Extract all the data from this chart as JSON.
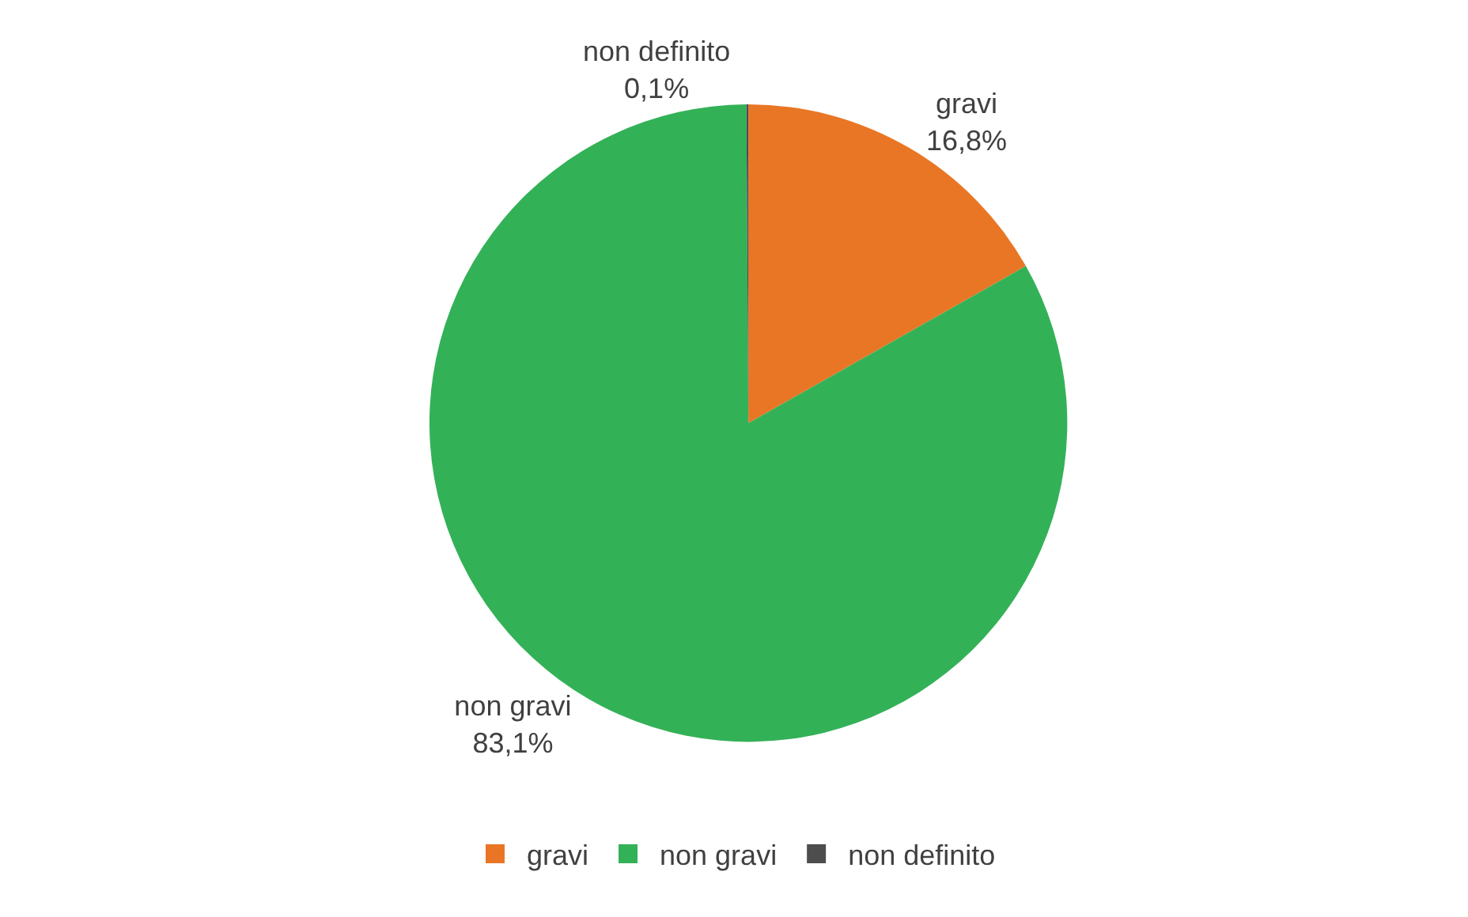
{
  "chart_data": {
    "type": "pie",
    "categories": [
      "gravi",
      "non gravi",
      "non definito"
    ],
    "values": [
      16.8,
      83.1,
      0.1
    ],
    "colors": [
      "#e97625",
      "#33b157",
      "#4d4d4d"
    ],
    "value_labels": [
      "16,8%",
      "83,1%",
      "0,1%"
    ],
    "legend": "bottom"
  }
}
